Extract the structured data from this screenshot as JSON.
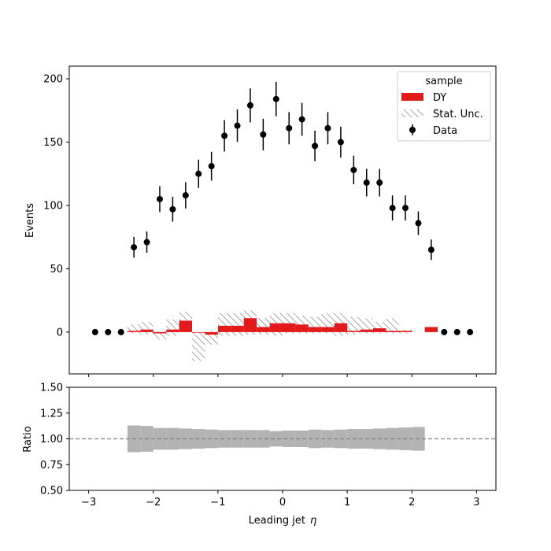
{
  "chart_data": [
    {
      "type": "bar",
      "panel": "main",
      "xlabel": "Leading jet",
      "xlabel_symbol": "η",
      "ylabel": "Events",
      "xlim": [
        -3.3,
        3.3
      ],
      "ylim": [
        -33,
        210
      ],
      "x_ticks": [
        -3,
        -2,
        -1,
        0,
        1,
        2,
        3
      ],
      "y_ticks": [
        0,
        50,
        100,
        150,
        200
      ],
      "legend": {
        "title": "sample",
        "placement": "top-right",
        "entries": [
          {
            "label": "DY",
            "kind": "bar",
            "color": "#e31a1c"
          },
          {
            "label": "Stat. Unc.",
            "kind": "hatch",
            "color": "#808080"
          },
          {
            "label": "Data",
            "kind": "errorbar",
            "color": "#000000"
          }
        ]
      },
      "bin_edges": [
        -2.4,
        -2.2,
        -2.0,
        -1.8,
        -1.6,
        -1.4,
        -1.2,
        -1.0,
        -0.8,
        -0.6,
        -0.4,
        -0.2,
        0.0,
        0.2,
        0.4,
        0.6,
        0.8,
        1.0,
        1.2,
        1.4,
        1.6,
        1.8,
        2.0,
        2.2,
        2.4
      ],
      "series": [
        {
          "name": "DY",
          "values": [
            1,
            2,
            -1,
            2,
            9,
            0,
            -2,
            5,
            5,
            11,
            4,
            7,
            7,
            6,
            4,
            4,
            7,
            1,
            2,
            3,
            1,
            1,
            null,
            4
          ],
          "unc_low": [
            -1,
            -2,
            -6,
            -3,
            2,
            -23,
            -10,
            -3,
            -3,
            -2,
            -2,
            -3,
            -1,
            -1,
            -1,
            -1,
            -3,
            -2,
            -1,
            -1,
            -1,
            -1,
            null,
            null
          ],
          "unc_high": [
            6,
            8,
            1,
            10,
            16,
            0,
            1,
            15,
            15,
            17,
            11,
            15,
            15,
            13,
            12,
            15,
            15,
            12,
            11,
            8,
            11,
            2,
            null,
            null
          ]
        },
        {
          "name": "Data",
          "x": [
            -2.9,
            -2.7,
            -2.5,
            -2.3,
            -2.1,
            -1.9,
            -1.7,
            -1.5,
            -1.3,
            -1.1,
            -0.9,
            -0.7,
            -0.5,
            -0.3,
            -0.1,
            0.1,
            0.3,
            0.5,
            0.7,
            0.9,
            1.1,
            1.3,
            1.5,
            1.7,
            1.9,
            2.1,
            2.3,
            2.5,
            2.7,
            2.9
          ],
          "y": [
            0,
            0,
            0,
            67,
            71,
            105,
            97,
            108,
            125,
            131,
            155,
            163,
            179,
            156,
            184,
            161,
            168,
            147,
            161,
            150,
            128,
            118,
            118,
            98,
            98,
            86,
            65,
            0,
            0,
            0
          ],
          "yerr": [
            0,
            0,
            0,
            8.2,
            8.4,
            10.2,
            9.8,
            10.4,
            11.2,
            11.4,
            12.4,
            12.8,
            13.4,
            12.5,
            13.6,
            12.7,
            13.0,
            12.1,
            12.7,
            12.2,
            11.3,
            10.9,
            10.9,
            9.9,
            9.9,
            9.3,
            8.1,
            0,
            0,
            0
          ]
        }
      ]
    },
    {
      "type": "area",
      "panel": "ratio",
      "xlabel": "Leading jet",
      "xlabel_symbol": "η",
      "ylabel": "Ratio",
      "xlim": [
        -3.3,
        3.3
      ],
      "ylim": [
        0.5,
        1.5
      ],
      "x_ticks": [
        -3,
        -2,
        -1,
        0,
        1,
        2,
        3
      ],
      "y_ticks": [
        0.5,
        0.75,
        1.0,
        1.25,
        1.5
      ],
      "y_tick_labels": [
        "0.50",
        "0.75",
        "1.00",
        "1.25",
        "1.50"
      ],
      "reference_line": 1.0,
      "bin_edges": [
        -2.4,
        -2.2,
        -2.0,
        -1.8,
        -1.6,
        -1.4,
        -1.2,
        -1.0,
        -0.8,
        -0.6,
        -0.4,
        -0.2,
        0.0,
        0.2,
        0.4,
        0.6,
        0.8,
        1.0,
        1.2,
        1.4,
        1.6,
        1.8,
        2.0,
        2.2
      ],
      "band_half_width": [
        0.13,
        0.125,
        0.105,
        0.105,
        0.1,
        0.095,
        0.09,
        0.085,
        0.085,
        0.085,
        0.085,
        0.075,
        0.08,
        0.08,
        0.09,
        0.085,
        0.09,
        0.095,
        0.095,
        0.1,
        0.105,
        0.11,
        0.115
      ]
    }
  ]
}
